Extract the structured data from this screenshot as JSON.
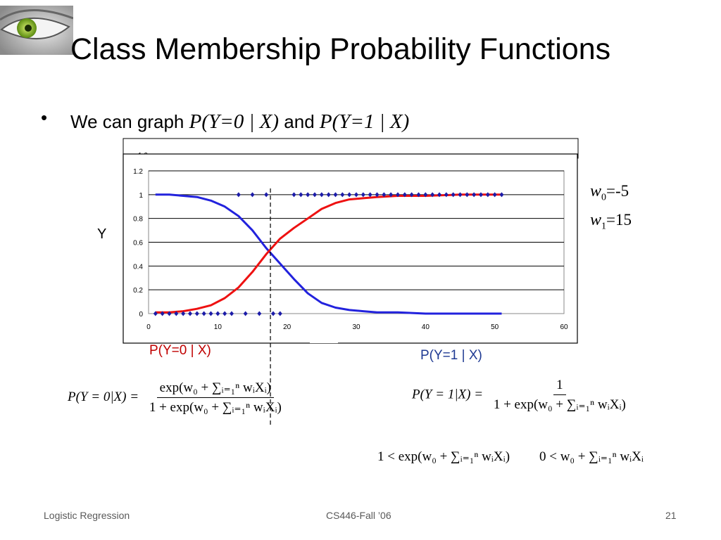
{
  "slide": {
    "title": "Class Membership Probability Functions",
    "bullet": {
      "marker": "•",
      "prefix": "We can graph ",
      "expr1": "P(Y=0 | X)",
      "connector": " and ",
      "expr2": "P(Y=1 | X)"
    },
    "y_axis_letter": "Y",
    "weights": {
      "w0_symbol": "w",
      "w0_sub": "0",
      "w0_value": "=-5",
      "w1_symbol": "w",
      "w1_sub": "1",
      "w1_value": "=15"
    },
    "label_p0": "P(Y=0 | X)",
    "label_p1": "P(Y=1 | X)",
    "equations": {
      "p0": {
        "lhs": "P(Y = 0|X) =",
        "numerator": "exp(w₀ + ∑ᵢ₌₁ⁿ wᵢXᵢ)",
        "denominator": "1 + exp(w₀ + ∑ᵢ₌₁ⁿ wᵢXᵢ)"
      },
      "p1": {
        "lhs": "P(Y = 1|X) =",
        "numerator": "1",
        "denominator": "1 + exp(w₀ + ∑ᵢ₌₁ⁿ wᵢXᵢ)"
      },
      "ineq1": "1 < exp(w₀ + ∑ᵢ₌₁ⁿ wᵢXᵢ)",
      "ineq2": "0 < w₀ + ∑ᵢ₌₁ⁿ wᵢXᵢ"
    },
    "footer": {
      "left": "Logistic Regression",
      "center": "CS446-Fall ’06",
      "right": "21"
    }
  },
  "chart_data": {
    "type": "line",
    "xlim": [
      0,
      60
    ],
    "ylim": [
      0,
      1.2
    ],
    "x_ticks": [
      0,
      10,
      20,
      30,
      40,
      50,
      60
    ],
    "y_ticks": [
      0,
      0.2,
      0.4,
      0.6,
      0.8,
      1,
      1.2
    ],
    "y_tick_labels": [
      "0",
      "0.2",
      "0.4",
      "0.6",
      "0.8",
      "1",
      "1.2"
    ],
    "partial_top_tick": "1.0",
    "grid": true,
    "decision_boundary_x": 17.6,
    "series": [
      {
        "name": "P(Y=0 | X)",
        "color": "#2222dd",
        "x": [
          1,
          3,
          5,
          7,
          9,
          11,
          13,
          15,
          17,
          19,
          21,
          23,
          25,
          27,
          29,
          31,
          33,
          36,
          40,
          45,
          51
        ],
        "y": [
          1.0,
          1.0,
          0.99,
          0.98,
          0.95,
          0.9,
          0.82,
          0.7,
          0.55,
          0.42,
          0.29,
          0.17,
          0.09,
          0.05,
          0.03,
          0.02,
          0.01,
          0.01,
          0.0,
          0.0,
          0.0
        ]
      },
      {
        "name": "P(Y=1 | X)",
        "color": "#ee1111",
        "x": [
          1,
          3,
          5,
          7,
          9,
          11,
          13,
          15,
          17,
          19,
          21,
          23,
          25,
          27,
          29,
          31,
          33,
          36,
          40,
          45,
          51
        ],
        "y": [
          0.01,
          0.01,
          0.02,
          0.04,
          0.07,
          0.13,
          0.22,
          0.35,
          0.5,
          0.63,
          0.72,
          0.8,
          0.88,
          0.93,
          0.96,
          0.97,
          0.98,
          0.99,
          0.99,
          1.0,
          1.0
        ]
      },
      {
        "name": "Y",
        "type": "scatter",
        "color": "#1c1ca8",
        "x": [
          1,
          2,
          3,
          4,
          5,
          6,
          7,
          8,
          9,
          10,
          11,
          12,
          14,
          16,
          18,
          19,
          13,
          15,
          17,
          21,
          22,
          23,
          24,
          25,
          26,
          27,
          28,
          29,
          30,
          31,
          32,
          33,
          34,
          35,
          36,
          37,
          38,
          39,
          40,
          41,
          42,
          43,
          44,
          45,
          46,
          47,
          48,
          49,
          50,
          51
        ],
        "y": [
          0,
          0,
          0,
          0,
          0,
          0,
          0,
          0,
          0,
          0,
          0,
          0,
          0,
          0,
          0,
          0,
          1,
          1,
          1,
          1,
          1,
          1,
          1,
          1,
          1,
          1,
          1,
          1,
          1,
          1,
          1,
          1,
          1,
          1,
          1,
          1,
          1,
          1,
          1,
          1,
          1,
          1,
          1,
          1,
          1,
          1,
          1,
          1,
          1,
          1
        ]
      }
    ]
  }
}
